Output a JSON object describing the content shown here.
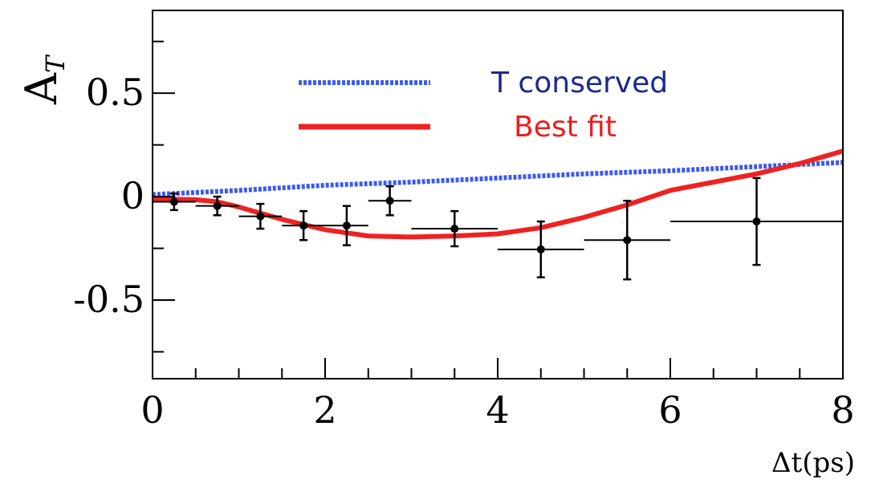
{
  "chart_data": {
    "type": "scatter",
    "title": "",
    "xlabel": "Δt(ps)",
    "ylabel": "A",
    "ylabel_sub": "T",
    "xlim": [
      0,
      8
    ],
    "ylim": [
      -0.88,
      0.9
    ],
    "x_ticks": [
      {
        "value": 0,
        "label": "0"
      },
      {
        "value": 2,
        "label": "2"
      },
      {
        "value": 4,
        "label": "4"
      },
      {
        "value": 6,
        "label": "6"
      },
      {
        "value": 8,
        "label": "8"
      }
    ],
    "y_ticks": [
      {
        "value": 0.5,
        "label": "0.5"
      },
      {
        "value": 0,
        "label": "0"
      },
      {
        "value": -0.5,
        "label": "-0.5"
      }
    ],
    "x_minor_step": 0.5,
    "y_minor_step": 0.25,
    "grid": false,
    "legend_position": "top-center",
    "series": [
      {
        "name": "T conserved",
        "kind": "line",
        "style": "dotted",
        "color": "#3b5bf0",
        "x": [
          0,
          1,
          2,
          3,
          4,
          5,
          6,
          7,
          8
        ],
        "y": [
          0.01,
          0.03,
          0.055,
          0.07,
          0.09,
          0.11,
          0.125,
          0.145,
          0.165
        ]
      },
      {
        "name": "Best fit",
        "kind": "line",
        "style": "solid",
        "color": "#ee2222",
        "x": [
          0,
          0.5,
          0.75,
          1.0,
          1.25,
          1.5,
          2.0,
          2.5,
          3.0,
          3.5,
          4.0,
          4.5,
          5.0,
          5.5,
          6.0,
          6.5,
          7.0,
          7.5,
          8.0
        ],
        "y": [
          -0.01,
          -0.015,
          -0.025,
          -0.05,
          -0.08,
          -0.11,
          -0.16,
          -0.19,
          -0.195,
          -0.19,
          -0.18,
          -0.15,
          -0.1,
          -0.04,
          0.03,
          0.07,
          0.11,
          0.16,
          0.22
        ]
      },
      {
        "name": "",
        "kind": "points",
        "color": "#000000",
        "points": [
          {
            "x": 0.25,
            "y": -0.025,
            "xerr": 0.25,
            "yerr": 0.04
          },
          {
            "x": 0.75,
            "y": -0.045,
            "xerr": 0.25,
            "yerr": 0.045
          },
          {
            "x": 1.25,
            "y": -0.095,
            "xerr": 0.25,
            "yerr": 0.06
          },
          {
            "x": 1.75,
            "y": -0.14,
            "xerr": 0.25,
            "yerr": 0.07
          },
          {
            "x": 2.25,
            "y": -0.14,
            "xerr": 0.25,
            "yerr": 0.095
          },
          {
            "x": 2.75,
            "y": -0.02,
            "xerr": 0.25,
            "yerr": 0.07
          },
          {
            "x": 3.5,
            "y": -0.155,
            "xerr": 0.5,
            "yerr": 0.085
          },
          {
            "x": 4.5,
            "y": -0.255,
            "xerr": 0.5,
            "yerr": 0.135
          },
          {
            "x": 5.5,
            "y": -0.21,
            "xerr": 0.5,
            "yerr": 0.19
          },
          {
            "x": 7.0,
            "y": -0.12,
            "xerr": 1.0,
            "yerr": 0.21
          }
        ]
      }
    ]
  }
}
